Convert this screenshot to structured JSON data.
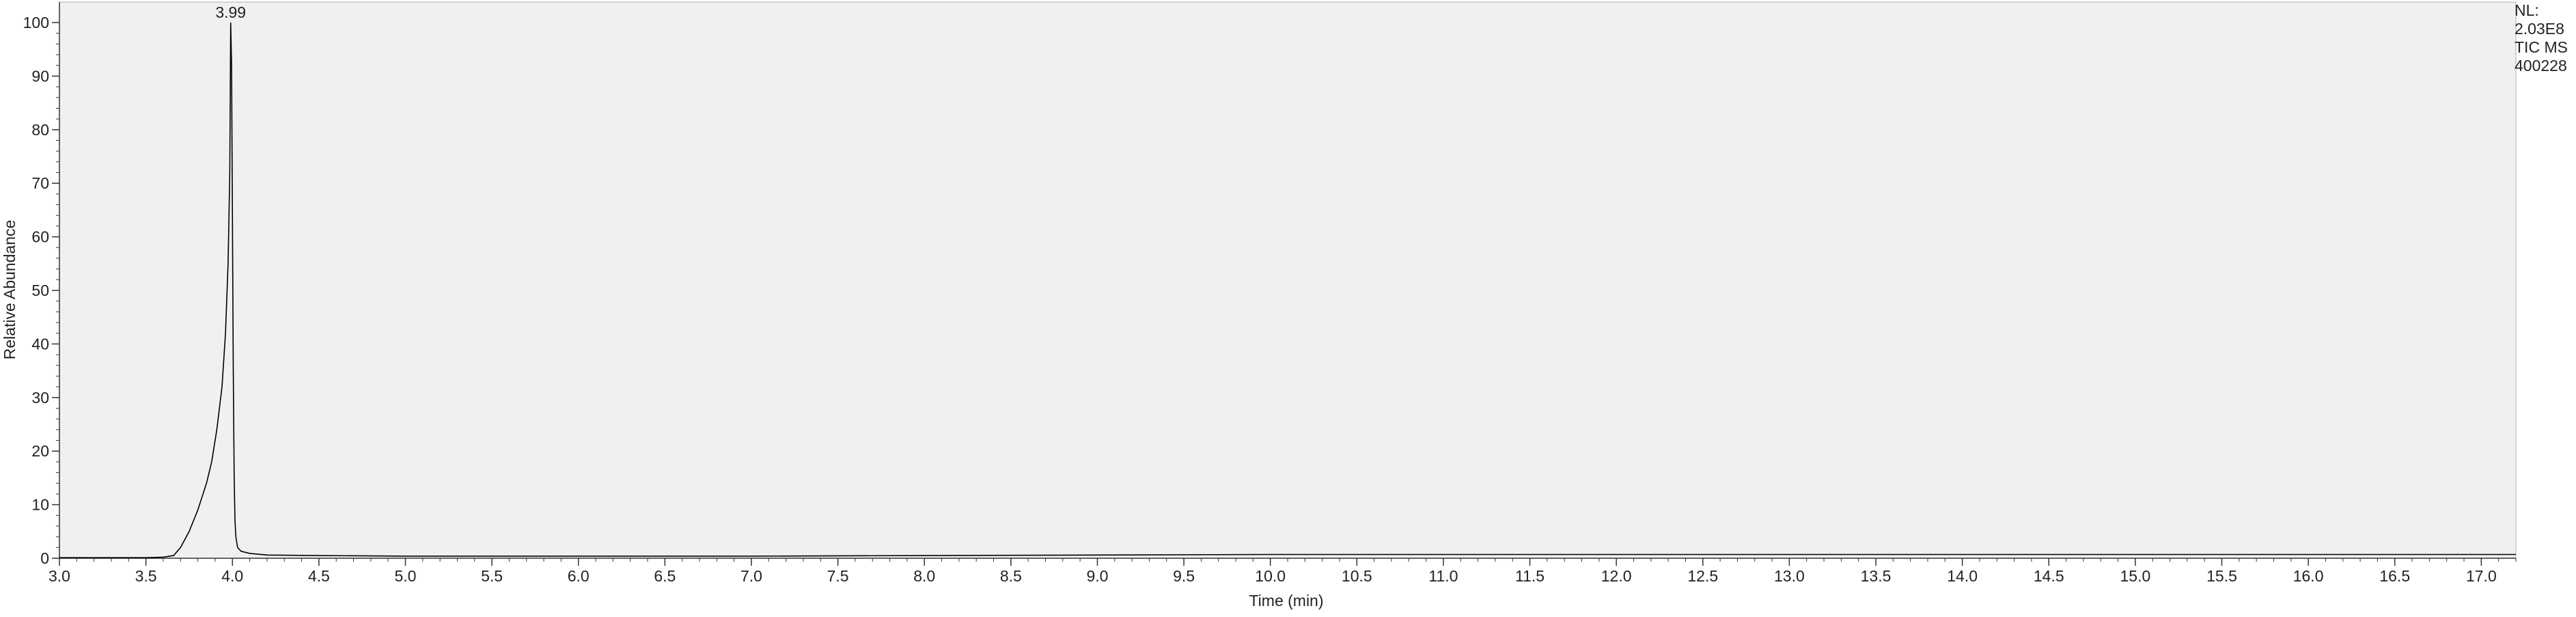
{
  "chart_data": {
    "type": "line",
    "xlabel": "Time (min)",
    "ylabel": "Relative Abundance",
    "xlim": [
      3.0,
      17.2
    ],
    "ylim": [
      0,
      100
    ],
    "x_ticks": [
      "3.0",
      "3.5",
      "4.0",
      "4.5",
      "5.0",
      "5.5",
      "6.0",
      "6.5",
      "7.0",
      "7.5",
      "8.0",
      "8.5",
      "9.0",
      "9.5",
      "10.0",
      "10.5",
      "11.0",
      "11.5",
      "12.0",
      "12.5",
      "13.0",
      "13.5",
      "14.0",
      "14.5",
      "15.0",
      "15.5",
      "16.0",
      "16.5",
      "17.0"
    ],
    "y_ticks": [
      "0",
      "10",
      "20",
      "30",
      "40",
      "50",
      "60",
      "70",
      "80",
      "90",
      "100"
    ],
    "peak_annotations": [
      {
        "x": 3.99,
        "y": 100,
        "label": "3.99"
      }
    ],
    "series": [
      {
        "x": [
          3.0,
          3.5,
          3.6,
          3.66,
          3.7,
          3.75,
          3.8,
          3.85,
          3.88,
          3.91,
          3.94,
          3.96,
          3.975,
          3.985,
          3.99,
          3.995,
          4.0,
          4.005,
          4.01,
          4.015,
          4.02,
          4.03,
          4.05,
          4.1,
          4.2,
          4.5,
          5.0,
          6.0,
          7.0,
          8.0,
          9.0,
          10.0,
          11.0,
          12.0,
          13.0,
          14.0,
          15.0,
          16.0,
          17.0,
          17.2
        ],
        "y": [
          0.1,
          0.1,
          0.2,
          0.5,
          2,
          5,
          9,
          14,
          18,
          24,
          32,
          42,
          55,
          72,
          100,
          92,
          65,
          35,
          15,
          7,
          4,
          2,
          1.3,
          0.9,
          0.6,
          0.5,
          0.4,
          0.4,
          0.4,
          0.5,
          0.6,
          0.7,
          0.7,
          0.7,
          0.7,
          0.7,
          0.7,
          0.7,
          0.7,
          0.7
        ]
      }
    ],
    "background_color": "#f0f0f0",
    "line_color": "#000000"
  },
  "side_info": [
    "NL:",
    "2.03E8",
    "TIC MS",
    "400228"
  ]
}
